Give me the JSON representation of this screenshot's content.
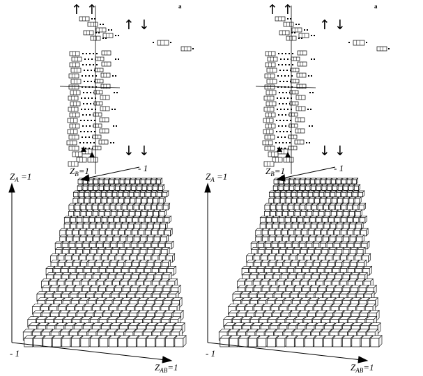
{
  "figure": {
    "panels": [
      {
        "id": "left",
        "axis_label_za_main": "Z",
        "axis_label_za_sub": "A",
        "axis_label_za_value": " =1",
        "axis_label_zb_main": "Z",
        "axis_label_zb_sub": "B",
        "axis_label_zb_value": "=1",
        "axis_label_zab_main": "Z",
        "axis_label_zab_sub": "AB",
        "axis_label_zab_value": "=1",
        "neg_label_bottom": "- 1",
        "neg_label_top": "- 1",
        "corner_mark": "a",
        "arrow_up_pair": "↑ ↑",
        "arrow_updown": "↑ ↓",
        "arrow_down_pair": "↓ ↓"
      },
      {
        "id": "right",
        "axis_label_za_main": "Z",
        "axis_label_za_sub": "A",
        "axis_label_za_value": " =1",
        "axis_label_zb_main": "Z",
        "axis_label_zb_sub": "B",
        "axis_label_zb_value": "=1",
        "axis_label_zab_main": "Z",
        "axis_label_zab_sub": "AB",
        "axis_label_zab_value": "=1",
        "neg_label_bottom": "- 1",
        "neg_label_top": "- 1",
        "corner_mark": "a",
        "arrow_up_pair": "↑ ↑",
        "arrow_updown": "↑ ↓",
        "arrow_down_pair": "↓ ↓"
      }
    ],
    "colors": {
      "stroke": "#000000",
      "fill": "#ffffff",
      "background": "#ffffff"
    }
  }
}
